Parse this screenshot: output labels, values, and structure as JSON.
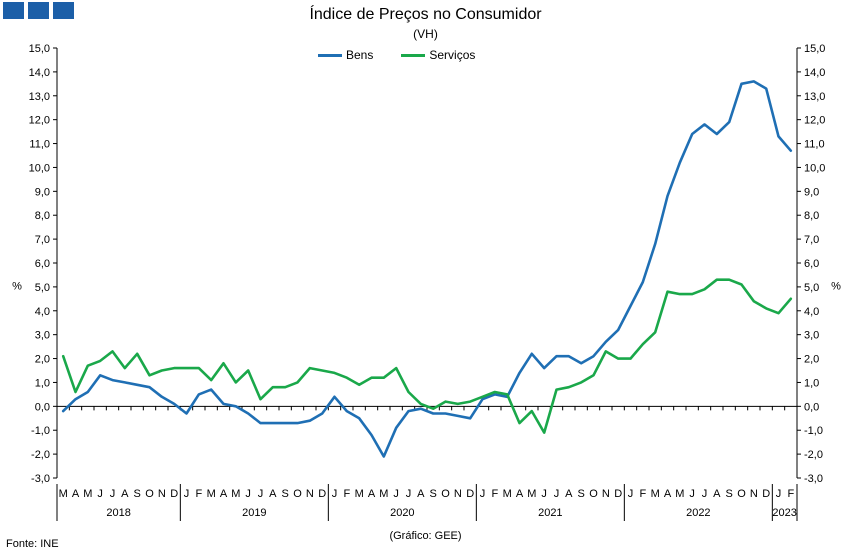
{
  "header": {
    "logo_icon": "ine-logo-icon"
  },
  "chart_data": {
    "type": "line",
    "title": "Índice de Preços no Consumidor",
    "subtitle": "(VH)",
    "ylabel": "%",
    "ylim": [
      -3,
      15
    ],
    "yticks": [
      "-3,0",
      "-2,0",
      "-1,0",
      "0,0",
      "1,0",
      "2,0",
      "3,0",
      "4,0",
      "5,0",
      "6,0",
      "7,0",
      "8,0",
      "9,0",
      "10,0",
      "11,0",
      "12,0",
      "13,0",
      "14,0",
      "15,0"
    ],
    "categories": [
      "M",
      "A",
      "M",
      "J",
      "J",
      "A",
      "S",
      "O",
      "N",
      "D",
      "J",
      "F",
      "M",
      "A",
      "M",
      "J",
      "J",
      "A",
      "S",
      "O",
      "N",
      "D",
      "J",
      "F",
      "M",
      "A",
      "M",
      "J",
      "J",
      "A",
      "S",
      "O",
      "N",
      "D",
      "J",
      "F",
      "M",
      "A",
      "M",
      "J",
      "J",
      "A",
      "S",
      "O",
      "N",
      "D",
      "J",
      "F",
      "M",
      "A",
      "M",
      "J",
      "J",
      "A",
      "S",
      "O",
      "N",
      "D",
      "J",
      "F"
    ],
    "years": [
      {
        "label": "2018",
        "start": 0,
        "end": 10
      },
      {
        "label": "2019",
        "start": 10,
        "end": 22
      },
      {
        "label": "2020",
        "start": 22,
        "end": 34
      },
      {
        "label": "2021",
        "start": 34,
        "end": 46
      },
      {
        "label": "2022",
        "start": 46,
        "end": 58
      },
      {
        "label": "2023",
        "start": 58,
        "end": 60
      }
    ],
    "series": [
      {
        "name": "Bens",
        "color": "#1f6fb4",
        "values": [
          -0.2,
          0.3,
          0.6,
          1.3,
          1.1,
          1.0,
          0.9,
          0.8,
          0.4,
          0.1,
          -0.3,
          0.5,
          0.7,
          0.1,
          0.0,
          -0.3,
          -0.7,
          -0.7,
          -0.7,
          -0.7,
          -0.6,
          -0.3,
          0.4,
          -0.2,
          -0.5,
          -1.2,
          -2.1,
          -0.9,
          -0.2,
          -0.1,
          -0.3,
          -0.3,
          -0.4,
          -0.5,
          0.3,
          0.5,
          0.4,
          1.4,
          2.2,
          1.6,
          2.1,
          2.1,
          1.8,
          2.1,
          2.7,
          3.2,
          4.2,
          5.2,
          6.8,
          8.8,
          10.2,
          11.4,
          11.8,
          11.4,
          11.9,
          13.5,
          13.6,
          13.3,
          11.3,
          10.7
        ]
      },
      {
        "name": "Serviços",
        "color": "#1aa84a",
        "values": [
          2.1,
          0.6,
          1.7,
          1.9,
          2.3,
          1.6,
          2.2,
          1.3,
          1.5,
          1.6,
          1.6,
          1.6,
          1.1,
          1.8,
          1.0,
          1.5,
          0.3,
          0.8,
          0.8,
          1.0,
          1.6,
          1.5,
          1.4,
          1.2,
          0.9,
          1.2,
          1.2,
          1.6,
          0.6,
          0.1,
          -0.1,
          0.2,
          0.1,
          0.2,
          0.4,
          0.6,
          0.5,
          -0.7,
          -0.2,
          -1.1,
          0.7,
          0.8,
          1.0,
          1.3,
          2.3,
          2.0,
          2.0,
          2.6,
          3.1,
          4.8,
          4.7,
          4.7,
          4.9,
          5.3,
          5.3,
          5.1,
          4.4,
          4.1,
          3.9,
          4.5
        ]
      }
    ],
    "legend_position": "top-center",
    "grid": false
  },
  "footer": {
    "source": "Fonte: INE",
    "credit": "(Gráfico: GEE)"
  }
}
